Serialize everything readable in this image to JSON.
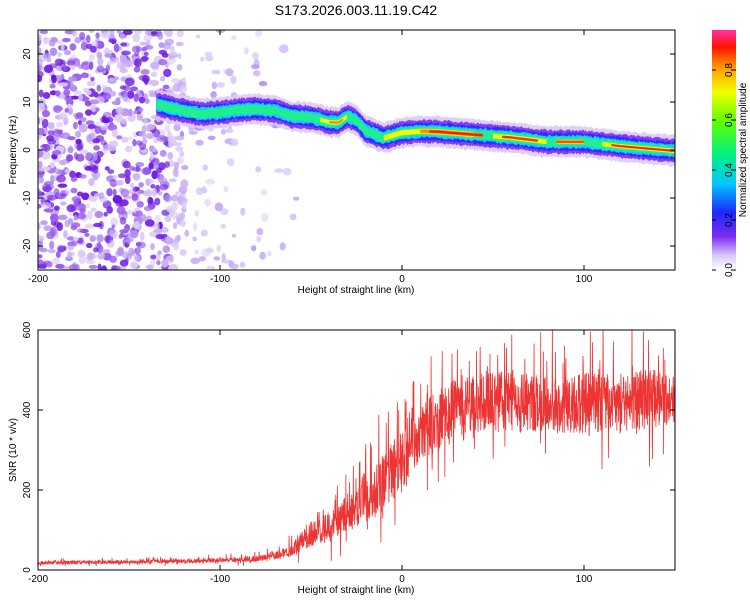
{
  "title": "S173.2026.003.11.19.C42",
  "chart_data": [
    {
      "type": "heatmap",
      "name": "spectrogram",
      "xlabel": "Height of straight line (km)",
      "ylabel": "Frequency (Hz)",
      "xlim": [
        -200,
        150
      ],
      "ylim": [
        -25,
        25
      ],
      "xticks": [
        -200,
        -100,
        0,
        100
      ],
      "yticks": [
        -20,
        -10,
        0,
        10,
        20
      ],
      "colorbar": {
        "label": "Normalized spectral amplitude",
        "range": [
          0,
          0.96
        ],
        "ticks": [
          0.0,
          0.2,
          0.4,
          0.6,
          0.8
        ]
      },
      "ridge": {
        "x": [
          -135,
          -120,
          -110,
          -100,
          -90,
          -80,
          -70,
          -60,
          -50,
          -40,
          -35,
          -30,
          -25,
          -20,
          -10,
          0,
          10,
          20,
          40,
          60,
          80,
          100,
          120,
          150
        ],
        "y": [
          9.5,
          8.2,
          7.5,
          7.8,
          8.3,
          8.5,
          8.2,
          7.0,
          6.8,
          5.8,
          5.7,
          7.0,
          6.2,
          4.0,
          2.5,
          3.6,
          3.9,
          3.8,
          3.2,
          2.6,
          1.7,
          1.7,
          0.8,
          -0.2
        ]
      },
      "noise_region": {
        "x_range": [
          -200,
          -70
        ],
        "description_level": "scattered low amplitude"
      }
    },
    {
      "type": "line",
      "name": "snr",
      "xlabel": "Height of straight line (km)",
      "ylabel": "SNR (10 * v/v)",
      "xlim": [
        -200,
        150
      ],
      "ylim": [
        0,
        600
      ],
      "xticks": [
        -200,
        -100,
        0,
        100
      ],
      "yticks": [
        0,
        200,
        400,
        600
      ],
      "envelope": {
        "x": [
          -200,
          -150,
          -100,
          -80,
          -70,
          -60,
          -50,
          -40,
          -30,
          -20,
          -10,
          0,
          10,
          20,
          30,
          40,
          60,
          80,
          100,
          120,
          150
        ],
        "mean": [
          18,
          20,
          24,
          28,
          35,
          50,
          90,
          110,
          140,
          170,
          220,
          280,
          340,
          380,
          410,
          420,
          425,
          410,
          415,
          420,
          435
        ],
        "amplitude": [
          8,
          8,
          10,
          14,
          16,
          30,
          60,
          70,
          80,
          100,
          130,
          140,
          130,
          140,
          140,
          130,
          140,
          130,
          140,
          140,
          130
        ]
      },
      "color": "#ee3333"
    }
  ]
}
